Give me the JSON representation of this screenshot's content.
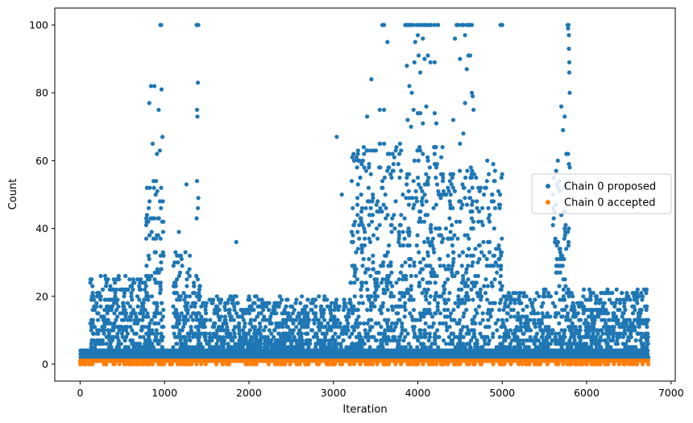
{
  "chart_data": {
    "type": "scatter",
    "xlabel": "Iteration",
    "ylabel": "Count",
    "xlim": [
      -300,
      7050
    ],
    "ylim": [
      -5,
      105
    ],
    "xticks": [
      0,
      1000,
      2000,
      3000,
      4000,
      5000,
      6000,
      7000
    ],
    "yticks": [
      0,
      20,
      40,
      60,
      80,
      100
    ],
    "grid": false,
    "legend_position": "center-right",
    "colors": {
      "proposed": "#1f77b4",
      "accepted": "#ff7f0e"
    },
    "series": [
      {
        "name": "Chain 0 proposed",
        "key": "proposed",
        "clusters": [
          {
            "x_range": [
              0,
              6730
            ],
            "base_max": 4
          },
          {
            "x_range": [
              120,
              820
            ],
            "values_max": 26
          },
          {
            "x_range": [
              780,
              990
            ],
            "values_max": 54
          },
          {
            "x_range": [
              1100,
              1420
            ],
            "values_max": 34
          },
          {
            "x_range": [
              1400,
              3200
            ],
            "values_max": 20
          },
          {
            "x_range": [
              3200,
              4300
            ],
            "values_max": 65
          },
          {
            "x_range": [
              4300,
              5000
            ],
            "values_max": 60
          },
          {
            "x_range": [
              5000,
              5600
            ],
            "values_max": 22
          },
          {
            "x_range": [
              5600,
              5800
            ],
            "values_max": 60
          },
          {
            "x_range": [
              5800,
              6730
            ],
            "values_max": 22
          }
        ],
        "points": [
          [
            820,
            77
          ],
          [
            840,
            82
          ],
          [
            860,
            65
          ],
          [
            870,
            54
          ],
          [
            880,
            82
          ],
          [
            900,
            54
          ],
          [
            910,
            62
          ],
          [
            930,
            75
          ],
          [
            945,
            63
          ],
          [
            950,
            100
          ],
          [
            960,
            100
          ],
          [
            965,
            81
          ],
          [
            975,
            67
          ],
          [
            980,
            48
          ],
          [
            960,
            52
          ],
          [
            1380,
            100
          ],
          [
            1390,
            100
          ],
          [
            1400,
            100
          ],
          [
            1395,
            83
          ],
          [
            1385,
            75
          ],
          [
            1390,
            73
          ],
          [
            1385,
            54
          ],
          [
            1400,
            49
          ],
          [
            1380,
            43
          ],
          [
            1395,
            46
          ],
          [
            1260,
            53
          ],
          [
            1300,
            32
          ],
          [
            1170,
            39
          ],
          [
            1850,
            36
          ],
          [
            3040,
            67
          ],
          [
            3100,
            50
          ],
          [
            3350,
            60
          ],
          [
            3400,
            73
          ],
          [
            3450,
            84
          ],
          [
            3580,
            100
          ],
          [
            3600,
            100
          ],
          [
            3550,
            75
          ],
          [
            3600,
            75
          ],
          [
            3640,
            95
          ],
          [
            3850,
            100
          ],
          [
            3870,
            100
          ],
          [
            3890,
            100
          ],
          [
            3900,
            100
          ],
          [
            3920,
            100
          ],
          [
            3950,
            100
          ],
          [
            3990,
            100
          ],
          [
            4020,
            100
          ],
          [
            4050,
            100
          ],
          [
            4080,
            100
          ],
          [
            4100,
            100
          ],
          [
            4130,
            100
          ],
          [
            4160,
            100
          ],
          [
            4200,
            100
          ],
          [
            4240,
            100
          ],
          [
            3870,
            88
          ],
          [
            3900,
            82
          ],
          [
            3930,
            80
          ],
          [
            3960,
            89
          ],
          [
            3970,
            95
          ],
          [
            4000,
            97
          ],
          [
            4010,
            91
          ],
          [
            4030,
            86
          ],
          [
            4060,
            96
          ],
          [
            4080,
            90
          ],
          [
            4120,
            91
          ],
          [
            4150,
            89
          ],
          [
            4200,
            89
          ],
          [
            3880,
            72
          ],
          [
            3920,
            70
          ],
          [
            3950,
            75
          ],
          [
            4000,
            74
          ],
          [
            4030,
            74
          ],
          [
            4060,
            71
          ],
          [
            4100,
            76
          ],
          [
            4200,
            74
          ],
          [
            4220,
            71
          ],
          [
            3960,
            60
          ],
          [
            4020,
            64
          ],
          [
            4060,
            62
          ],
          [
            4420,
            72
          ],
          [
            4440,
            96
          ],
          [
            4460,
            100
          ],
          [
            4480,
            100
          ],
          [
            4500,
            90
          ],
          [
            4520,
            100
          ],
          [
            4540,
            100
          ],
          [
            4560,
            97
          ],
          [
            4580,
            100
          ],
          [
            4600,
            100
          ],
          [
            4620,
            100
          ],
          [
            4640,
            100
          ],
          [
            4560,
            77
          ],
          [
            4580,
            87
          ],
          [
            4600,
            91
          ],
          [
            4620,
            91
          ],
          [
            4640,
            80
          ],
          [
            4650,
            79
          ],
          [
            4660,
            75
          ],
          [
            4500,
            65
          ],
          [
            4540,
            68
          ],
          [
            4980,
            100
          ],
          [
            5000,
            100
          ],
          [
            4850,
            42
          ],
          [
            5700,
            76
          ],
          [
            5720,
            69
          ],
          [
            5740,
            73
          ],
          [
            5760,
            62
          ],
          [
            5775,
            100
          ],
          [
            5780,
            99
          ],
          [
            5785,
            100
          ],
          [
            5790,
            97
          ],
          [
            5790,
            93
          ],
          [
            5795,
            89
          ],
          [
            5795,
            86
          ],
          [
            5800,
            80
          ],
          [
            5780,
            62
          ],
          [
            5790,
            59
          ]
        ]
      },
      {
        "name": "Chain 0 accepted",
        "key": "accepted",
        "band": {
          "x_range": [
            0,
            6730
          ],
          "values": [
            0,
            1,
            2
          ]
        }
      }
    ]
  }
}
